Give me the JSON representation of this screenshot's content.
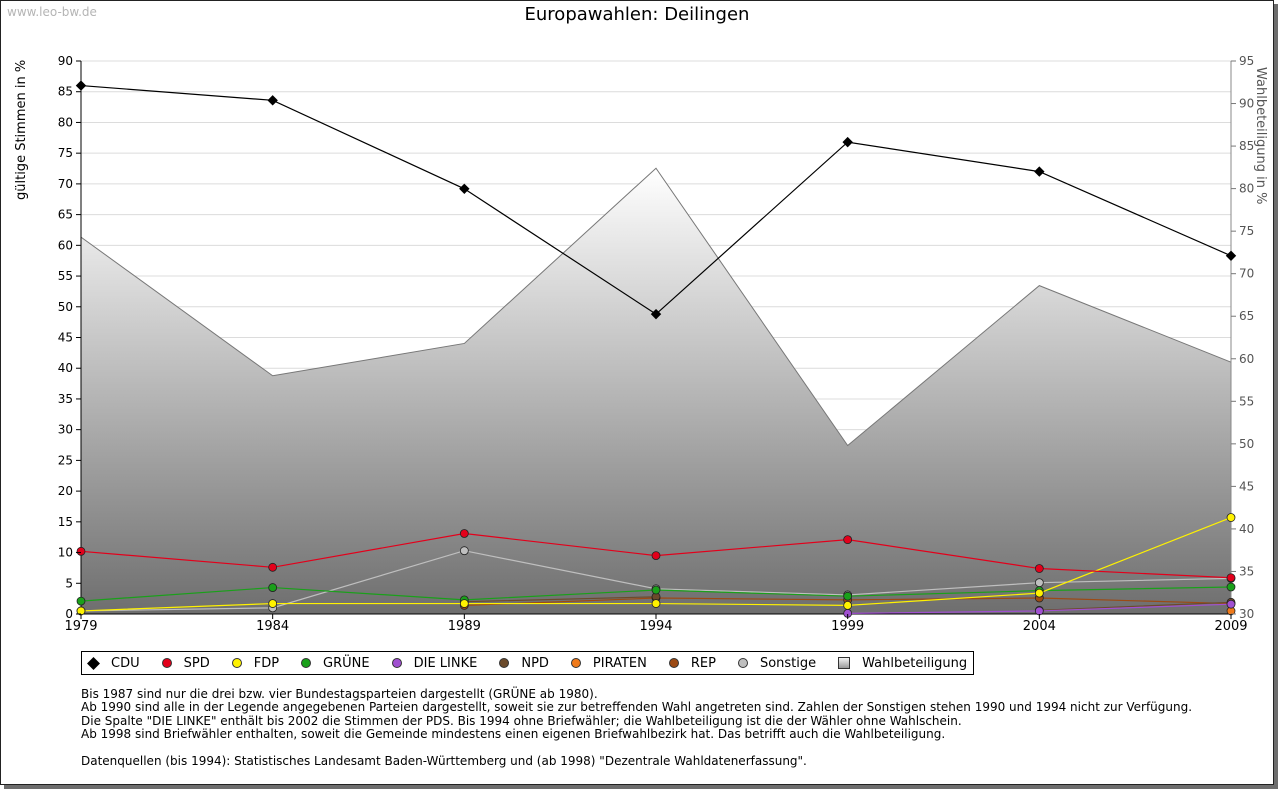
{
  "watermark": "www.leo-bw.de",
  "chart_data": {
    "type": "line",
    "title": "Europawahlen: Deilingen",
    "ylabel": "gültige Stimmen in %",
    "y2label": "Wahlbeteiligung in %",
    "ylim": [
      0,
      90
    ],
    "y2lim": [
      30,
      95
    ],
    "yticks": [
      0,
      5,
      10,
      15,
      20,
      25,
      30,
      35,
      40,
      45,
      50,
      55,
      60,
      65,
      70,
      75,
      80,
      85,
      90
    ],
    "y2ticks": [
      30,
      35,
      40,
      45,
      50,
      55,
      60,
      65,
      70,
      75,
      80,
      85,
      90,
      95
    ],
    "x": [
      1979,
      1984,
      1989,
      1994,
      1999,
      2004,
      2009
    ],
    "xticks": [
      "1979",
      "1984",
      "1989",
      "1994",
      "1999",
      "2004",
      "2009"
    ],
    "series": [
      {
        "name": "CDU",
        "color": "#000000",
        "marker": "diamond",
        "values": [
          86.0,
          83.6,
          69.2,
          48.8,
          76.8,
          72.0,
          58.3
        ]
      },
      {
        "name": "SPD",
        "color": "#e3001b",
        "marker": "circle",
        "values": [
          10.2,
          7.6,
          13.1,
          9.5,
          12.1,
          7.4,
          5.9
        ]
      },
      {
        "name": "FDP",
        "color": "#fff200",
        "marker": "circle",
        "values": [
          0.5,
          1.7,
          1.7,
          1.7,
          1.4,
          3.4,
          15.7
        ]
      },
      {
        "name": "GRÜNE",
        "color": "#1aa01a",
        "marker": "circle",
        "values": [
          2.1,
          4.3,
          2.3,
          3.9,
          2.9,
          3.8,
          4.4
        ]
      },
      {
        "name": "DIE LINKE",
        "color": "#a050d0",
        "marker": "circle",
        "values": [
          null,
          null,
          null,
          null,
          0.1,
          0.5,
          1.6
        ]
      },
      {
        "name": "NPD",
        "color": "#6b4a2b",
        "marker": "circle",
        "values": [
          null,
          null,
          2.0,
          2.8,
          null,
          0.6,
          1.9
        ]
      },
      {
        "name": "PIRATEN",
        "color": "#f07a1a",
        "marker": "circle",
        "values": [
          null,
          null,
          null,
          null,
          null,
          null,
          0.5
        ]
      },
      {
        "name": "REP",
        "color": "#9c4a14",
        "marker": "circle",
        "values": [
          null,
          null,
          1.4,
          2.6,
          2.3,
          2.6,
          1.7
        ]
      },
      {
        "name": "Sonstige",
        "color": "#bfbfbf",
        "marker": "circle",
        "values": [
          0.5,
          1.0,
          10.3,
          4.1,
          3.1,
          5.1,
          5.8
        ]
      }
    ],
    "turnout": {
      "name": "Wahlbeteiligung",
      "values": [
        74.3,
        58.0,
        61.8,
        82.4,
        49.8,
        68.6,
        59.6
      ]
    },
    "legend": "bottom"
  },
  "notes": [
    "Bis 1987 sind nur die drei bzw. vier Bundestagsparteien dargestellt (GRÜNE ab 1980).",
    "Ab 1990 sind alle in der Legende angegebenen Parteien dargestellt, soweit sie zur betreffenden Wahl angetreten sind. Zahlen der Sonstigen stehen 1990 und 1994 nicht zur Verfügung.",
    "Die Spalte \"DIE LINKE\" enthält bis 2002 die Stimmen der PDS. Bis 1994 ohne Briefwähler; die Wahlbeteiligung ist die der Wähler ohne Wahlschein.",
    "Ab 1998 sind Briefwähler enthalten, soweit die Gemeinde mindestens einen eigenen Briefwahlbezirk hat. Das betrifft auch die Wahlbeteiligung."
  ],
  "source": "Datenquellen (bis 1994): Statistisches Landesamt Baden-Württemberg und (ab 1998) \"Dezentrale Wahldatenerfassung\"."
}
